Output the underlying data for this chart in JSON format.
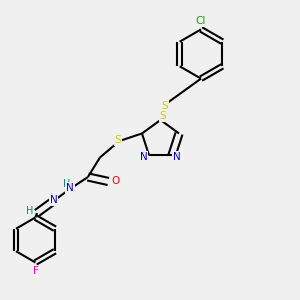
{
  "bg_color": "#f0f0f0",
  "C": "#000000",
  "N": "#0000cc",
  "S": "#cccc00",
  "O": "#ff0000",
  "F": "#ff00bb",
  "Cl": "#00aa00",
  "H": "#008888",
  "bond_color": "#000000",
  "bond_width": 1.5,
  "dbo": 0.012,
  "font_size": 7.5
}
